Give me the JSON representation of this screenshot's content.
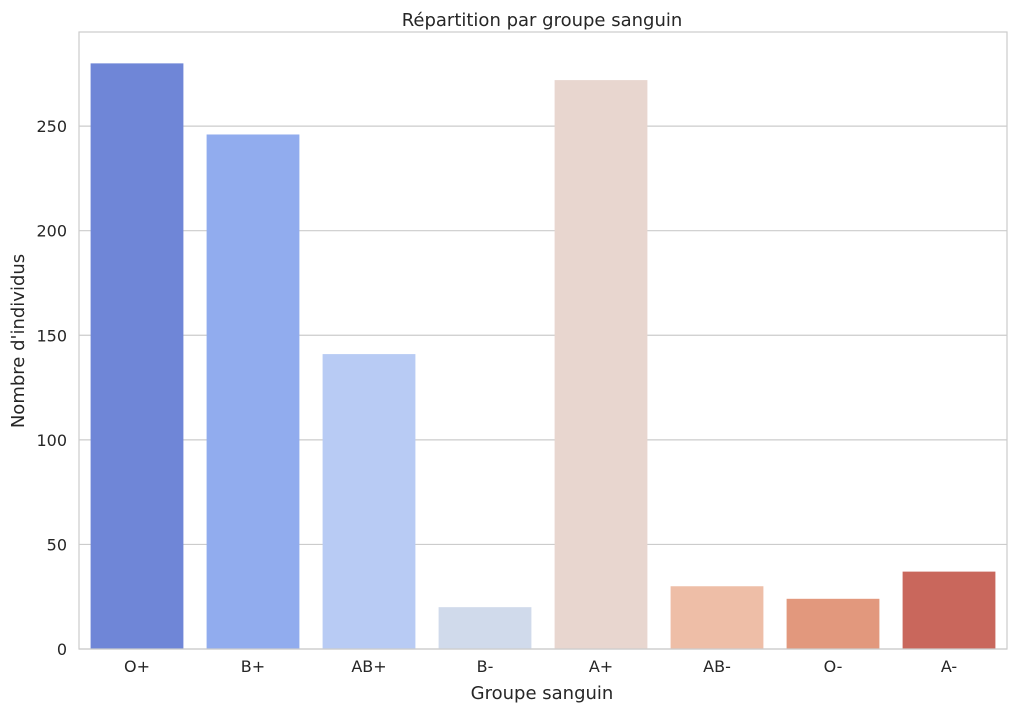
{
  "chart_data": {
    "type": "bar",
    "title": "Répartition par groupe sanguin",
    "xlabel": "Groupe sanguin",
    "ylabel": "Nombre d'individus",
    "categories": [
      "O+",
      "B+",
      "AB+",
      "B-",
      "A+",
      "AB-",
      "O-",
      "A-"
    ],
    "values": [
      280,
      246,
      141,
      20,
      272,
      30,
      24,
      37
    ],
    "colors": [
      "#6f86d7",
      "#91acee",
      "#b8cbf4",
      "#d0daeb",
      "#e8d6cf",
      "#eebea7",
      "#e2987d",
      "#c9675c"
    ],
    "ylim": [
      0,
      295
    ],
    "yticks": [
      0,
      50,
      100,
      150,
      200,
      250
    ],
    "grid": true,
    "legend": "none"
  }
}
